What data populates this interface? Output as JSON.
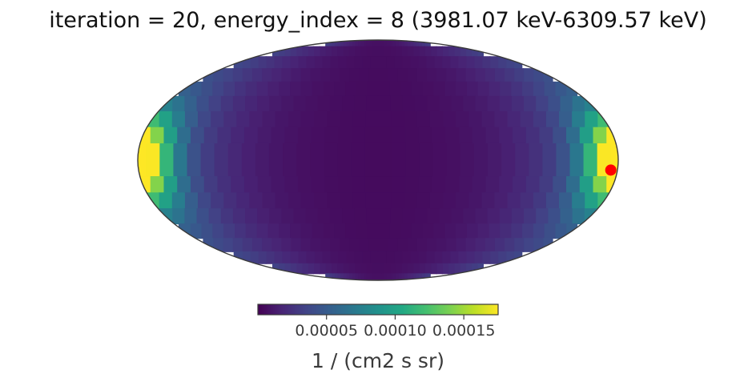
{
  "chart_data": {
    "type": "heatmap",
    "projection": "mollweide",
    "title": "iteration = 20, energy_index = 8 (3981.07 keV-6309.57 keV)",
    "colormap": "viridis",
    "colorbar": {
      "label": "1 / (cm2 s sr)",
      "range": [
        0.0,
        0.000175
      ],
      "ticks": [
        {
          "value": 5e-05,
          "label": "0.00005"
        },
        {
          "value": 0.0001,
          "label": "0.00010"
        },
        {
          "value": 0.00015,
          "label": "0.00015"
        }
      ]
    },
    "hotspot_peak": 0.000175,
    "background_level": 5e-06,
    "marker": {
      "lon_deg": -175,
      "lat_deg": -6,
      "color": "#ff0000"
    }
  }
}
